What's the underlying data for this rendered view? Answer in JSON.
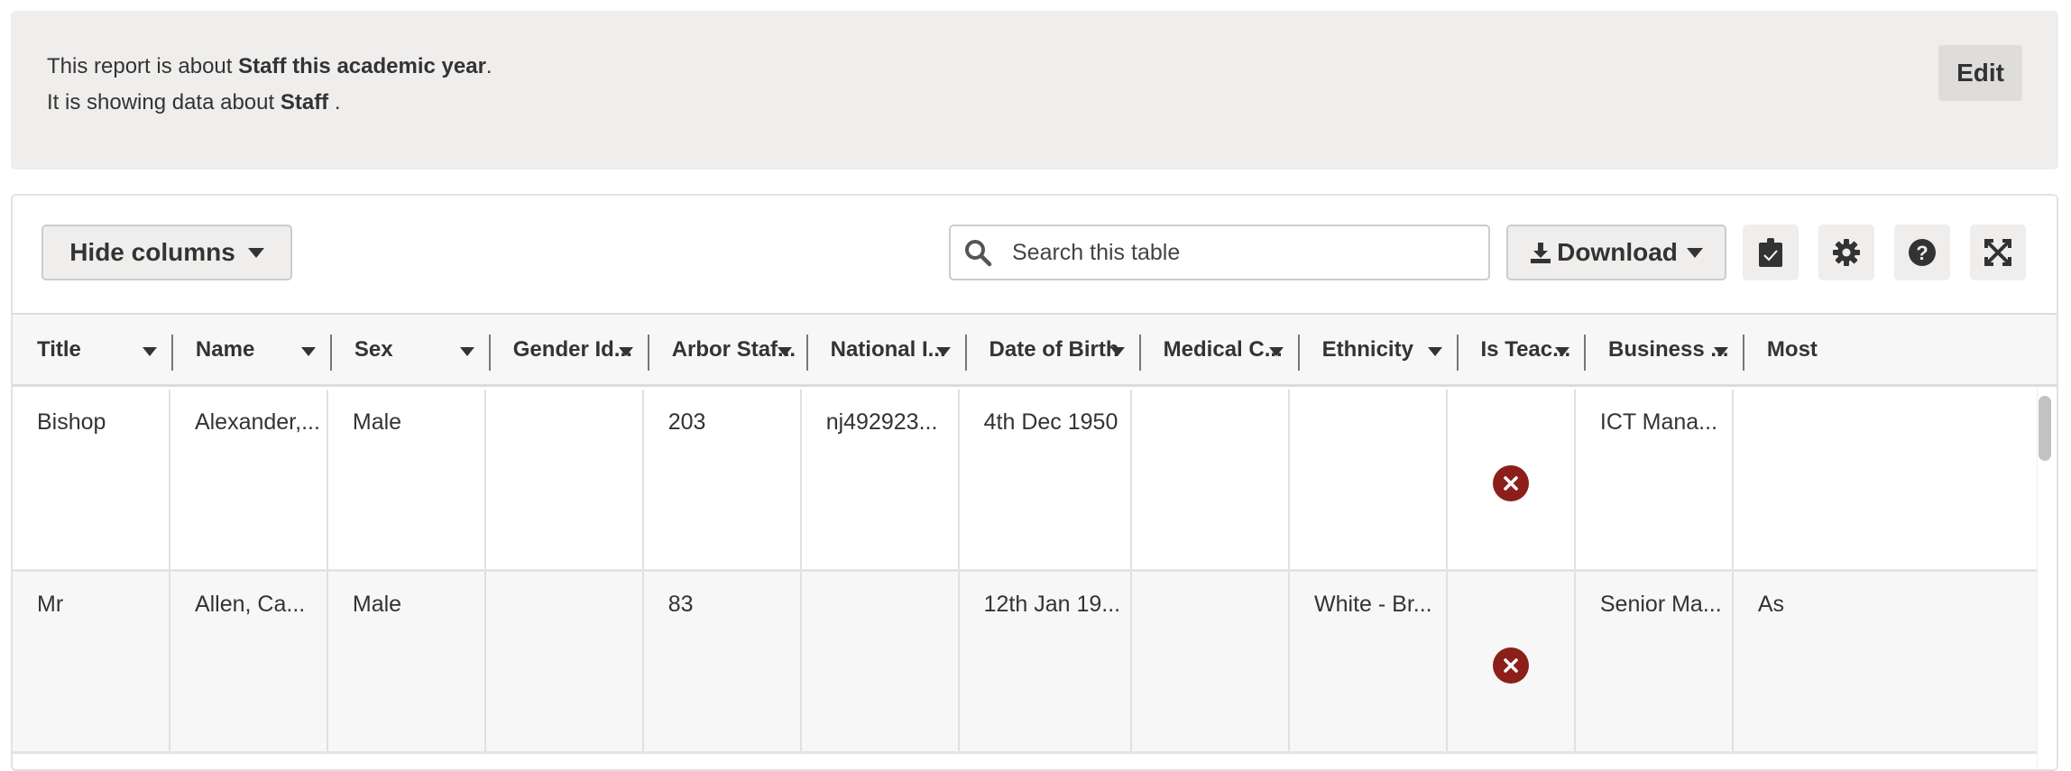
{
  "info": {
    "line1_prefix": "This report is about ",
    "line1_bold": "Staff this academic year",
    "line1_suffix": ".",
    "line2_prefix": "It is showing data about ",
    "line2_bold": "Staff",
    "line2_suffix": " .",
    "edit_label": "Edit"
  },
  "toolbar": {
    "hide_columns_label": "Hide columns",
    "search_placeholder": "Search this table",
    "download_label": "Download",
    "icons": [
      "clipboard-check-icon",
      "gear-icon",
      "help-icon",
      "expand-icon"
    ]
  },
  "columns": [
    "Title",
    "Name",
    "Sex",
    "Gender Id...",
    "Arbor Staf...",
    "National I...",
    "Date of Birth",
    "Medical C...",
    "Ethnicity",
    "Is Teac...",
    "Business ...",
    "Most"
  ],
  "rows": [
    {
      "cells": [
        "Bishop",
        "Alexander,...",
        "Male",
        "",
        "203",
        "nj492923...",
        "4th Dec 1950",
        "",
        "",
        "",
        "ICT Mana...",
        ""
      ],
      "is_teacher": false
    },
    {
      "cells": [
        "Mr",
        "Allen, Ca...",
        "Male",
        "",
        "83",
        "",
        "12th Jan 19...",
        "",
        "White - Br...",
        "",
        "Senior Ma...",
        "As"
      ],
      "is_teacher": false
    }
  ],
  "colors": {
    "accent_error": "#8c1f1a",
    "panel_bg": "#efeeed"
  }
}
